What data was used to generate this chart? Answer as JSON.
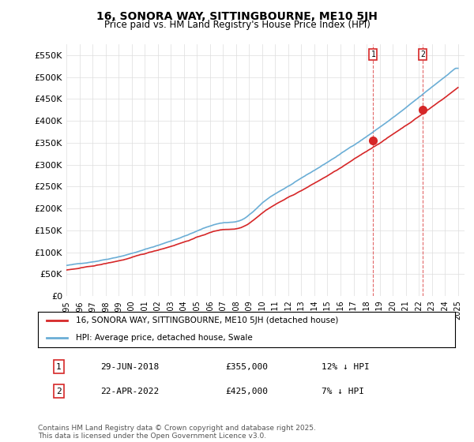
{
  "title": "16, SONORA WAY, SITTINGBOURNE, ME10 5JH",
  "subtitle": "Price paid vs. HM Land Registry's House Price Index (HPI)",
  "ylabel_ticks": [
    "£0",
    "£50K",
    "£100K",
    "£150K",
    "£200K",
    "£250K",
    "£300K",
    "£350K",
    "£400K",
    "£450K",
    "£500K",
    "£550K"
  ],
  "ylim": [
    0,
    575000
  ],
  "ytick_vals": [
    0,
    50000,
    100000,
    150000,
    200000,
    250000,
    300000,
    350000,
    400000,
    450000,
    500000,
    550000
  ],
  "hpi_color": "#6baed6",
  "price_color": "#d62728",
  "marker1_date": 2018.5,
  "marker1_price": 355000,
  "marker1_label": "1",
  "marker2_date": 2022.3,
  "marker2_price": 425000,
  "marker2_label": "2",
  "legend_line1": "16, SONORA WAY, SITTINGBOURNE, ME10 5JH (detached house)",
  "legend_line2": "HPI: Average price, detached house, Swale",
  "annotation1_num": "1",
  "annotation1_date": "29-JUN-2018",
  "annotation1_price": "£355,000",
  "annotation1_hpi": "12% ↓ HPI",
  "annotation2_num": "2",
  "annotation2_date": "22-APR-2022",
  "annotation2_price": "£425,000",
  "annotation2_hpi": "7% ↓ HPI",
  "footer": "Contains HM Land Registry data © Crown copyright and database right 2025.\nThis data is licensed under the Open Government Licence v3.0.",
  "background_color": "#ffffff",
  "grid_color": "#dddddd"
}
